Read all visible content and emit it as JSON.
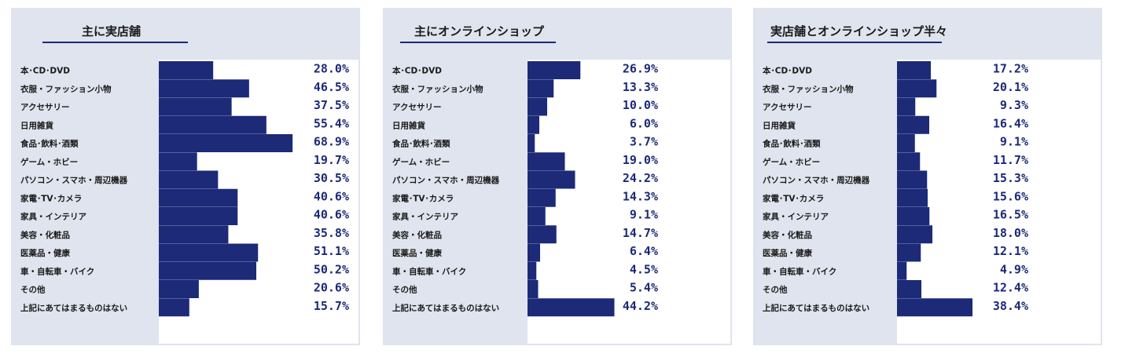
{
  "colors": {
    "bar": "#1c2a78",
    "panel_bg": "#dfe4ee",
    "plot_bg": "#ffffff"
  },
  "chart_data": [
    {
      "type": "bar",
      "orientation": "horizontal",
      "title": "主に実店舗",
      "categories": [
        "本･CD･DVD",
        "衣服・ファッション小物",
        "アクセサリー",
        "日用雑貨",
        "食品･飲料･酒類",
        "ゲーム・ホビー",
        "パソコン・スマホ・周辺機器",
        "家電･TV･カメラ",
        "家具・インテリア",
        "美容・化粧品",
        "医薬品・健康",
        "車・自転車・バイク",
        "その他",
        "上記にあてはまるものはない"
      ],
      "values": [
        28.0,
        46.5,
        37.5,
        55.4,
        68.9,
        19.7,
        30.5,
        40.6,
        40.6,
        35.8,
        51.1,
        50.2,
        20.6,
        15.7
      ],
      "labels": [
        "28.0%",
        "46.5%",
        "37.5%",
        "55.4%",
        "68.9%",
        "19.7%",
        "30.5%",
        "40.6%",
        "40.6%",
        "35.8%",
        "51.1%",
        "50.2%",
        "20.6%",
        "15.7%"
      ],
      "xlim": [
        0,
        100
      ]
    },
    {
      "type": "bar",
      "orientation": "horizontal",
      "title": "主にオンラインショップ",
      "categories": [
        "本･CD･DVD",
        "衣服・ファッション小物",
        "アクセサリー",
        "日用雑貨",
        "食品･飲料･酒類",
        "ゲーム・ホビー",
        "パソコン・スマホ・周辺機器",
        "家電･TV･カメラ",
        "家具・インテリア",
        "美容・化粧品",
        "医薬品・健康",
        "車・自転車・バイク",
        "その他",
        "上記にあてはまるものはない"
      ],
      "values": [
        26.9,
        13.3,
        10.0,
        6.0,
        3.7,
        19.0,
        24.2,
        14.3,
        9.1,
        14.7,
        6.4,
        4.5,
        5.4,
        44.2
      ],
      "labels": [
        "26.9%",
        "13.3%",
        "10.0%",
        "6.0%",
        "3.7%",
        "19.0%",
        "24.2%",
        "14.3%",
        "9.1%",
        "14.7%",
        "6.4%",
        "4.5%",
        "5.4%",
        "44.2%"
      ],
      "xlim": [
        0,
        100
      ]
    },
    {
      "type": "bar",
      "orientation": "horizontal",
      "title": "実店舗とオンラインショップ半々",
      "categories": [
        "本･CD･DVD",
        "衣服・ファッション小物",
        "アクセサリー",
        "日用雑貨",
        "食品･飲料･酒類",
        "ゲーム・ホビー",
        "パソコン・スマホ・周辺機器",
        "家電･TV･カメラ",
        "家具・インテリア",
        "美容・化粧品",
        "医薬品・健康",
        "車・自転車・バイク",
        "その他",
        "上記にあてはまるものはない"
      ],
      "values": [
        17.2,
        20.1,
        9.3,
        16.4,
        9.1,
        11.7,
        15.3,
        15.6,
        16.5,
        18.0,
        12.1,
        4.9,
        12.4,
        38.4
      ],
      "labels": [
        "17.2%",
        "20.1%",
        "9.3%",
        "16.4%",
        "9.1%",
        "11.7%",
        "15.3%",
        "15.6%",
        "16.5%",
        "18.0%",
        "12.1%",
        "4.9%",
        "12.4%",
        "38.4%"
      ],
      "xlim": [
        0,
        100
      ]
    }
  ]
}
